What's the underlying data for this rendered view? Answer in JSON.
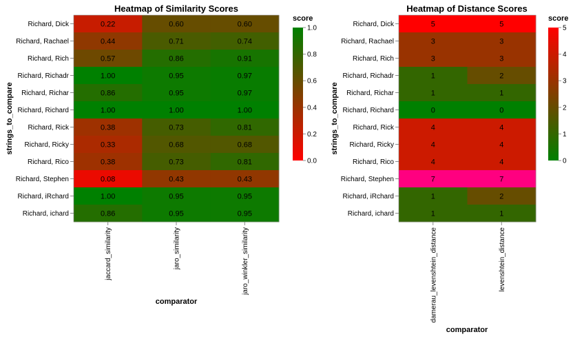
{
  "chart_data": [
    {
      "type": "heatmap",
      "title": "Heatmap of Similarity Scores",
      "xlabel": "comparator",
      "ylabel": "strings_to_compare",
      "rows": [
        "Richard, Dick",
        "Richard, Rachael",
        "Richard, Rich",
        "Richard, Richadr",
        "Richard, Richar",
        "Richard, Richard",
        "Richard, Rick",
        "Richard, Ricky",
        "Richard, Rico",
        "Richard, Stephen",
        "Richard, iRchard",
        "Richard, ichard"
      ],
      "columns": [
        "jaccard_similarity",
        "jaro_similarity",
        "jaro_winkler_similarity"
      ],
      "values": [
        [
          0.22,
          0.6,
          0.6
        ],
        [
          0.44,
          0.71,
          0.74
        ],
        [
          0.57,
          0.86,
          0.91
        ],
        [
          1.0,
          0.95,
          0.97
        ],
        [
          0.86,
          0.95,
          0.97
        ],
        [
          1.0,
          1.0,
          1.0
        ],
        [
          0.38,
          0.73,
          0.81
        ],
        [
          0.33,
          0.68,
          0.68
        ],
        [
          0.38,
          0.73,
          0.81
        ],
        [
          0.08,
          0.43,
          0.43
        ],
        [
          1.0,
          0.95,
          0.95
        ],
        [
          0.86,
          0.95,
          0.95
        ]
      ],
      "legend": {
        "title": "score",
        "domain": [
          0,
          1
        ],
        "ticks": [
          "0.0",
          "0.2",
          "0.4",
          "0.6",
          "0.8",
          "1.0"
        ],
        "colors": [
          "#ff0000",
          "#008000"
        ]
      }
    },
    {
      "type": "heatmap",
      "title": "Heatmap of Distance Scores",
      "xlabel": "comparator",
      "ylabel": "strings_to_compare",
      "rows": [
        "Richard, Dick",
        "Richard, Rachael",
        "Richard, Rich",
        "Richard, Richadr",
        "Richard, Richar",
        "Richard, Richard",
        "Richard, Rick",
        "Richard, Ricky",
        "Richard, Rico",
        "Richard, Stephen",
        "Richard, iRchard",
        "Richard, ichard"
      ],
      "columns": [
        "damerau_levenshtein_distance",
        "levenshtein_distance"
      ],
      "values": [
        [
          5,
          5
        ],
        [
          3,
          3
        ],
        [
          3,
          3
        ],
        [
          1,
          2
        ],
        [
          1,
          1
        ],
        [
          0,
          0
        ],
        [
          4,
          4
        ],
        [
          4,
          4
        ],
        [
          4,
          4
        ],
        [
          7,
          7
        ],
        [
          1,
          2
        ],
        [
          1,
          1
        ]
      ],
      "legend": {
        "title": "score",
        "domain": [
          0,
          5
        ],
        "ticks": [
          "0",
          "1",
          "2",
          "3",
          "4",
          "5"
        ],
        "colors": [
          "#008000",
          "#ff0000"
        ],
        "overflow_color": "#ff0080"
      }
    }
  ]
}
